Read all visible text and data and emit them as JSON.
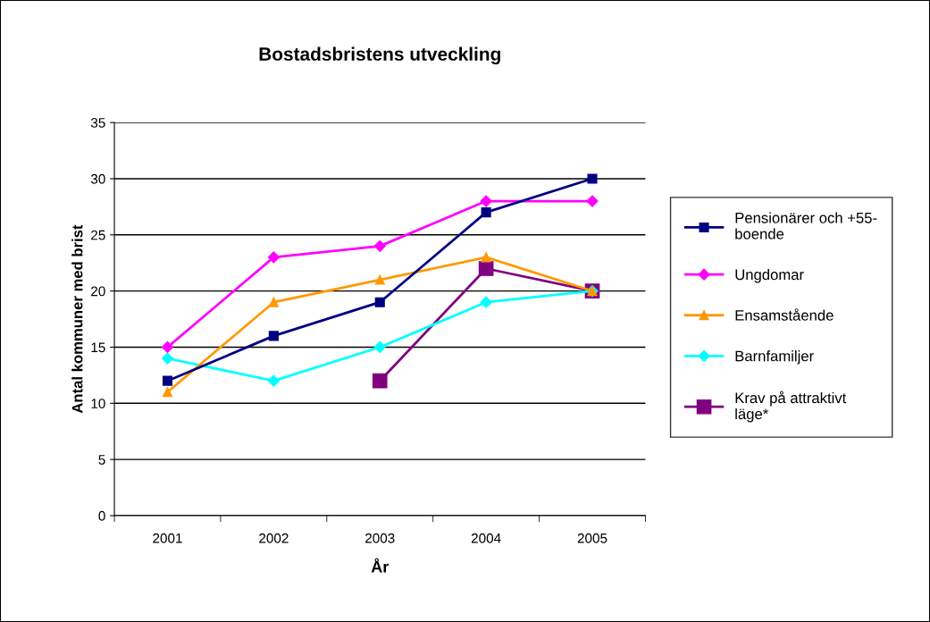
{
  "chart_data": {
    "type": "line",
    "title": "Bostadsbristens utveckling",
    "xlabel": "År",
    "ylabel": "Antal kommuner med brist",
    "categories": [
      "2001",
      "2002",
      "2003",
      "2004",
      "2005"
    ],
    "series": [
      {
        "name": "Pensionärer och +55-boende",
        "color": "#000080",
        "marker": "square",
        "values": [
          12,
          16,
          19,
          27,
          30
        ]
      },
      {
        "name": "Ungdomar",
        "color": "#ff00ff",
        "marker": "diamond",
        "values": [
          15,
          23,
          24,
          28,
          28
        ]
      },
      {
        "name": "Ensamstående",
        "color": "#ff9900",
        "marker": "triangle",
        "values": [
          11,
          19,
          21,
          23,
          20
        ]
      },
      {
        "name": "Barnfamiljer",
        "color": "#00ffff",
        "marker": "diamond",
        "values": [
          14,
          12,
          15,
          19,
          20
        ]
      },
      {
        "name": "Krav på attraktivt läge*",
        "color": "#800080",
        "marker": "square",
        "values": [
          null,
          null,
          12,
          22,
          20
        ]
      }
    ],
    "ylim": [
      0,
      35
    ],
    "yticks": [
      0,
      5,
      10,
      15,
      20,
      25,
      30,
      35
    ],
    "grid": "y",
    "legend": "right",
    "line_style": "solid"
  }
}
